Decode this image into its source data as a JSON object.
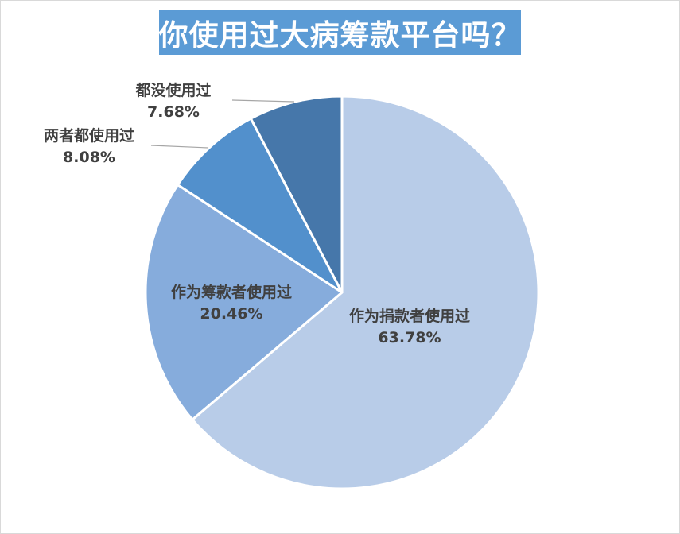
{
  "chart_data": {
    "type": "pie",
    "title": "你使用过大病筹款平台吗？",
    "slices": [
      {
        "label": "作为捐款者使用过",
        "value": 63.78,
        "display": "63.78%",
        "color": "#b8cce8"
      },
      {
        "label": "作为筹款者使用过",
        "value": 20.46,
        "display": "20.46%",
        "color": "#86acdc"
      },
      {
        "label": "两者都使用过",
        "value": 8.08,
        "display": "8.08%",
        "color": "#5290cc"
      },
      {
        "label": "都没使用过",
        "value": 7.68,
        "display": "7.68%",
        "color": "#4677aa"
      }
    ],
    "start_angle_deg": 0,
    "direction": "clockwise",
    "legend": "none",
    "label_position": "data labels with leader lines for small slices"
  }
}
